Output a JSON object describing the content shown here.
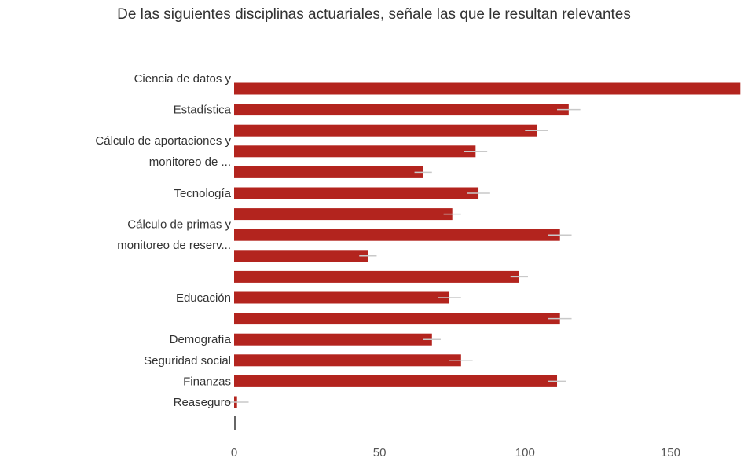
{
  "chart_data": {
    "type": "bar",
    "orientation": "horizontal",
    "title": "De las siguientes disciplinas actuariales, señale las que le resultan relevantes",
    "xlim": [
      0,
      175
    ],
    "xticks": [
      "0",
      "50",
      "100",
      "150"
    ],
    "xtick_values": [
      0,
      50,
      100,
      150
    ],
    "grid": false,
    "legend": "none",
    "bar_color": "#b3241e",
    "error_color": "#c9c9c9",
    "bars": [
      {
        "value": 174,
        "error": 0
      },
      {
        "value": 115,
        "error": 4
      },
      {
        "value": 104,
        "error": 4
      },
      {
        "value": 83,
        "error": 4
      },
      {
        "value": 65,
        "error": 3
      },
      {
        "value": 84,
        "error": 4
      },
      {
        "value": 75,
        "error": 3
      },
      {
        "value": 112,
        "error": 4
      },
      {
        "value": 46,
        "error": 3
      },
      {
        "value": 98,
        "error": 3
      },
      {
        "value": 74,
        "error": 4
      },
      {
        "value": 112,
        "error": 4
      },
      {
        "value": 68,
        "error": 3
      },
      {
        "value": 78,
        "error": 4
      },
      {
        "value": 111,
        "error": 3
      },
      {
        "value": 1,
        "error": 4
      },
      {
        "value": 0,
        "error": 0
      }
    ],
    "labels": [
      {
        "text": "Ciencia de datos y",
        "bar": 0,
        "pos": "upper"
      },
      {
        "text": "Estadística",
        "bar": 1,
        "pos": "mid"
      },
      {
        "text": "Cálculo de aportaciones y",
        "bar": 2,
        "pos": "lower"
      },
      {
        "text": "monitoreo de ...",
        "bar": 3,
        "pos": "lower"
      },
      {
        "text": "Tecnología",
        "bar": 5,
        "pos": "mid"
      },
      {
        "text": "Cálculo de primas y",
        "bar": 6,
        "pos": "lower"
      },
      {
        "text": "monitoreo de reserv...",
        "bar": 7,
        "pos": "lower"
      },
      {
        "text": "Educación",
        "bar": 10,
        "pos": "mid"
      },
      {
        "text": "Demografía",
        "bar": 12,
        "pos": "mid"
      },
      {
        "text": "Seguridad social",
        "bar": 13,
        "pos": "mid"
      },
      {
        "text": "Finanzas",
        "bar": 14,
        "pos": "mid"
      },
      {
        "text": "Reaseguro",
        "bar": 15,
        "pos": "mid"
      }
    ]
  }
}
